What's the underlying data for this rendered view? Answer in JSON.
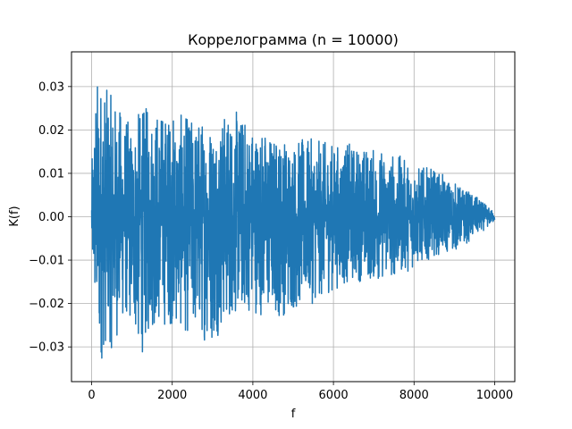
{
  "chart_data": {
    "type": "line",
    "title": "Коррелограмма (n = 10000)",
    "xlabel": "f",
    "ylabel": "K(f)",
    "xlim": [
      -500,
      10500
    ],
    "ylim": [
      -0.038,
      0.038
    ],
    "grid": true,
    "line_color": "#1f77b4",
    "x_ticks": [
      {
        "value": 0,
        "label": "0"
      },
      {
        "value": 2000,
        "label": "2000"
      },
      {
        "value": 4000,
        "label": "4000"
      },
      {
        "value": 6000,
        "label": "6000"
      },
      {
        "value": 8000,
        "label": "8000"
      },
      {
        "value": 10000,
        "label": "10000"
      }
    ],
    "y_ticks": [
      {
        "value": -0.03,
        "label": "−0.03"
      },
      {
        "value": -0.02,
        "label": "−0.02"
      },
      {
        "value": -0.01,
        "label": "−0.01"
      },
      {
        "value": 0.0,
        "label": "0.00"
      },
      {
        "value": 0.01,
        "label": "0.01"
      },
      {
        "value": 0.02,
        "label": "0.02"
      },
      {
        "value": 0.03,
        "label": "0.03"
      }
    ],
    "envelope": {
      "f": [
        0,
        100,
        200,
        400,
        500,
        800,
        1000,
        1200,
        1500,
        2000,
        2500,
        3000,
        3500,
        4000,
        4500,
        5000,
        5500,
        6000,
        6500,
        7000,
        7500,
        8000,
        8500,
        9000,
        9500,
        10000
      ],
      "upper": [
        0.011,
        0.032,
        0.034,
        0.029,
        0.028,
        0.024,
        0.021,
        0.025,
        0.026,
        0.024,
        0.023,
        0.023,
        0.025,
        0.022,
        0.019,
        0.018,
        0.018,
        0.017,
        0.017,
        0.016,
        0.015,
        0.012,
        0.011,
        0.008,
        0.005,
        0.001
      ],
      "lower": [
        -0.012,
        -0.026,
        -0.035,
        -0.028,
        -0.031,
        -0.024,
        -0.025,
        -0.033,
        -0.026,
        -0.025,
        -0.028,
        -0.029,
        -0.023,
        -0.022,
        -0.024,
        -0.022,
        -0.02,
        -0.017,
        -0.015,
        -0.015,
        -0.014,
        -0.012,
        -0.009,
        -0.008,
        -0.005,
        -0.001
      ]
    }
  }
}
